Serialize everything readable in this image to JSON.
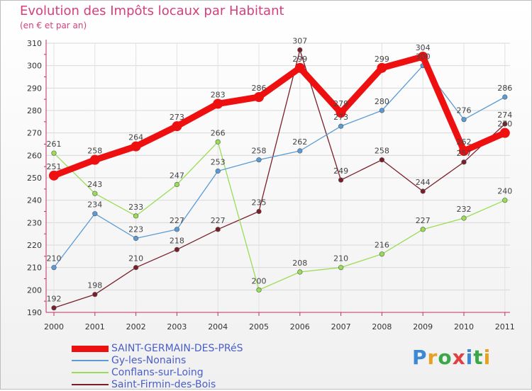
{
  "header": {
    "title": "Evolution des Impôts locaux par Habitant",
    "subtitle": "(en € et par an)"
  },
  "logo": {
    "text": "Proxiti"
  },
  "chart_data": {
    "type": "line",
    "title": "Evolution des Impôts locaux par Habitant",
    "subtitle": "(en € et par an)",
    "xlabel": "",
    "ylabel": "",
    "x": [
      "2000",
      "2001",
      "2002",
      "2003",
      "2004",
      "2005",
      "2006",
      "2007",
      "2008",
      "2009",
      "2010",
      "2011"
    ],
    "ylim": [
      190,
      310
    ],
    "yticks": [
      190,
      200,
      210,
      220,
      230,
      240,
      250,
      260,
      270,
      280,
      290,
      300,
      310
    ],
    "grid": true,
    "legend_position": "bottom-left",
    "series": [
      {
        "name": "SAINT-GERMAIN-DES-PRéS",
        "color": "#ee1010",
        "values": [
          251,
          258,
          264,
          273,
          283,
          286,
          299,
          279,
          299,
          304,
          262,
          270
        ]
      },
      {
        "name": "Gy-les-Nonains",
        "color": "#5b9bd5",
        "values": [
          210,
          234,
          223,
          227,
          253,
          258,
          262,
          273,
          280,
          300,
          276,
          286
        ]
      },
      {
        "name": "Conflans-sur-Loing",
        "color": "#99dd55",
        "values": [
          261,
          243,
          233,
          247,
          266,
          200,
          208,
          210,
          216,
          227,
          232,
          240
        ]
      },
      {
        "name": "Saint-Firmin-des-Bois",
        "color": "#7a1f2a",
        "values": [
          192,
          198,
          210,
          218,
          227,
          235,
          307,
          249,
          258,
          244,
          257,
          274
        ]
      }
    ]
  }
}
